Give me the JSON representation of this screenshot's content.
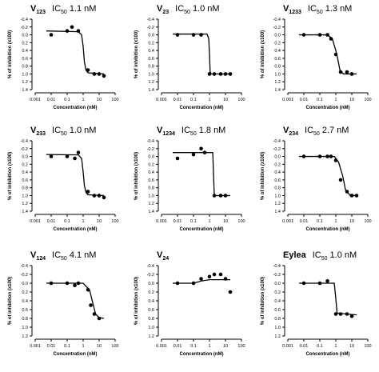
{
  "chart_data": [
    {
      "type": "scatter",
      "label": "V",
      "label_sub": "123",
      "ic50": "IC",
      "ic50_sub": "50",
      "ic50_text": "1.1 nM",
      "xlabel": "Concentration (nM)",
      "ylabel": "% of inhibition (x100)",
      "xscale": "log",
      "y_inverted": true,
      "xlim": [
        0.001,
        100
      ],
      "xticks": [
        0.001,
        0.01,
        0.1,
        1,
        10,
        100
      ],
      "ylim": [
        -0.4,
        1.4
      ],
      "yticks": [
        -0.4,
        -0.2,
        {
          "value": 0,
          "label": "0.0"
        },
        0.2,
        0.4,
        0.6,
        0.8,
        {
          "value": 1,
          "label": "1.0"
        },
        1.2,
        1.4
      ],
      "points": {
        "x": [
          0.01,
          0.1,
          0.2,
          0.5,
          2,
          5,
          10,
          20
        ],
        "values": [
          0.0,
          -0.1,
          -0.2,
          -0.1,
          0.9,
          1.0,
          1.0,
          1.05
        ]
      },
      "fit": {
        "x": [
          0.005,
          0.5,
          0.8,
          1,
          1.2,
          1.5,
          2,
          20
        ],
        "values": [
          -0.1,
          -0.08,
          0.0,
          0.3,
          0.7,
          0.9,
          0.97,
          1.0
        ]
      }
    },
    {
      "type": "scatter",
      "label": "V",
      "label_sub": "23",
      "ic50": "IC",
      "ic50_sub": "50",
      "ic50_text": "1.0 nM",
      "xlabel": "Concentration (nM)",
      "ylabel": "% of inhibition (x100)",
      "xscale": "log",
      "y_inverted": true,
      "xlim": [
        0.001,
        100
      ],
      "xticks": [
        0.001,
        0.01,
        0.1,
        1,
        10,
        100
      ],
      "ylim": [
        -0.4,
        1.4
      ],
      "yticks": [
        -0.4,
        -0.2,
        {
          "value": 0,
          "label": "0.0"
        },
        0.2,
        0.4,
        0.6,
        0.8,
        {
          "value": 1,
          "label": "1.0"
        },
        1.2,
        1.4
      ],
      "points": {
        "x": [
          0.01,
          0.1,
          0.3,
          1,
          2,
          5,
          10,
          20
        ],
        "values": [
          0.0,
          0.0,
          0.0,
          1.0,
          1.0,
          1.0,
          1.0,
          1.0
        ]
      },
      "fit": {
        "x": [
          0.005,
          0.7,
          0.9,
          1,
          1.1,
          1.3,
          20
        ],
        "values": [
          -0.02,
          -0.02,
          0.1,
          0.5,
          0.95,
          1.0,
          1.0
        ]
      }
    },
    {
      "type": "scatter",
      "label": "V",
      "label_sub": "1233",
      "ic50": "IC",
      "ic50_sub": "50",
      "ic50_text": "1.3 nM",
      "xlabel": "Concentration (nM)",
      "ylabel": "% of inhibition (x100)",
      "xscale": "log",
      "y_inverted": true,
      "xlim": [
        0.001,
        100
      ],
      "xticks": [
        0.001,
        0.01,
        0.1,
        1,
        10,
        100
      ],
      "ylim": [
        -0.4,
        1.4
      ],
      "yticks": [
        -0.4,
        -0.2,
        {
          "value": 0,
          "label": "0.0"
        },
        0.2,
        0.4,
        0.6,
        0.8,
        {
          "value": 1,
          "label": "1.0"
        },
        1.2,
        1.4
      ],
      "points": {
        "x": [
          0.01,
          0.1,
          0.3,
          0.5,
          1,
          2,
          5,
          10
        ],
        "values": [
          0.0,
          0.0,
          0.0,
          0.1,
          0.5,
          0.95,
          0.95,
          1.0
        ]
      },
      "fit": {
        "x": [
          0.005,
          0.3,
          0.6,
          1,
          1.3,
          1.8,
          3,
          20
        ],
        "values": [
          0.0,
          0.0,
          0.1,
          0.4,
          0.6,
          0.9,
          1.0,
          1.0
        ]
      }
    },
    {
      "type": "scatter",
      "label": "V",
      "label_sub": "233",
      "ic50": "IC",
      "ic50_sub": "50",
      "ic50_text": "1.0 nM",
      "xlabel": "Concentration (nM)",
      "ylabel": "% of inhibition (x100)",
      "xscale": "log",
      "y_inverted": true,
      "xlim": [
        0.001,
        100
      ],
      "xticks": [
        0.001,
        0.01,
        0.1,
        1,
        10,
        100
      ],
      "ylim": [
        -0.4,
        1.4
      ],
      "yticks": [
        -0.4,
        -0.2,
        {
          "value": 0,
          "label": "0.0"
        },
        0.2,
        0.4,
        0.6,
        0.8,
        {
          "value": 1,
          "label": "1.0"
        },
        1.2,
        1.4
      ],
      "points": {
        "x": [
          0.01,
          0.1,
          0.3,
          0.5,
          2,
          5,
          10,
          20
        ],
        "values": [
          0.0,
          0.0,
          0.05,
          -0.1,
          0.9,
          1.0,
          1.0,
          1.05
        ]
      },
      "fit": {
        "x": [
          0.005,
          0.5,
          0.8,
          1,
          1.2,
          1.5,
          2,
          20
        ],
        "values": [
          -0.05,
          -0.04,
          0.05,
          0.4,
          0.75,
          0.92,
          0.98,
          1.0
        ]
      }
    },
    {
      "type": "scatter",
      "label": "V",
      "label_sub": "1234",
      "ic50": "IC",
      "ic50_sub": "50",
      "ic50_text": "1.8 nM",
      "xlabel": "Concentration (nM)",
      "ylabel": "% of inhibition (x100)",
      "xscale": "log",
      "y_inverted": true,
      "xlim": [
        0.001,
        100
      ],
      "xticks": [
        0.001,
        0.01,
        0.1,
        1,
        10,
        100
      ],
      "ylim": [
        -0.4,
        1.4
      ],
      "yticks": [
        -0.4,
        -0.2,
        {
          "value": 0,
          "label": "0.0"
        },
        0.2,
        0.4,
        0.6,
        0.8,
        {
          "value": 1,
          "label": "1.0"
        },
        1.2,
        1.4
      ],
      "points": {
        "x": [
          0.01,
          0.1,
          0.3,
          0.5,
          2,
          5,
          10
        ],
        "values": [
          0.05,
          -0.05,
          -0.2,
          -0.1,
          1.0,
          1.0,
          1.0
        ]
      },
      "fit": {
        "x": [
          0.005,
          1.6,
          1.8,
          2,
          20
        ],
        "values": [
          -0.1,
          -0.1,
          0.5,
          1.0,
          1.0
        ]
      }
    },
    {
      "type": "scatter",
      "label": "V",
      "label_sub": "234",
      "ic50": "IC",
      "ic50_sub": "50",
      "ic50_text": "2.7 nM",
      "xlabel": "Concentration (nM)",
      "ylabel": "% of inhibition (x100)",
      "xscale": "log",
      "y_inverted": true,
      "xlim": [
        0.001,
        100
      ],
      "xticks": [
        0.001,
        0.01,
        0.1,
        1,
        10,
        100
      ],
      "ylim": [
        -0.4,
        1.4
      ],
      "yticks": [
        -0.4,
        -0.2,
        {
          "value": 0,
          "label": "0.0"
        },
        0.2,
        0.4,
        0.6,
        0.8,
        {
          "value": 1,
          "label": "1.0"
        },
        1.2,
        1.4
      ],
      "points": {
        "x": [
          0.01,
          0.1,
          0.3,
          0.5,
          1,
          2,
          5,
          10,
          20
        ],
        "values": [
          0.0,
          0.0,
          0.0,
          0.0,
          0.1,
          0.6,
          0.9,
          1.0,
          1.0
        ]
      },
      "fit": {
        "x": [
          0.005,
          0.8,
          1.5,
          2.7,
          4,
          8,
          20
        ],
        "values": [
          0.0,
          0.0,
          0.15,
          0.5,
          0.85,
          1.0,
          1.0
        ]
      }
    },
    {
      "type": "scatter",
      "label": "V",
      "label_sub": "124",
      "ic50": "IC",
      "ic50_sub": "50",
      "ic50_text": "4.1 nM",
      "xlabel": "Concentration (nM)",
      "ylabel": "% of inhibition (x100)",
      "xscale": "log",
      "y_inverted": true,
      "xlim": [
        0.001,
        100
      ],
      "xticks": [
        0.001,
        0.01,
        0.1,
        1,
        10,
        100
      ],
      "ylim": [
        -0.4,
        1.2
      ],
      "yticks": [
        -0.4,
        -0.2,
        {
          "value": 0,
          "label": "0.0"
        },
        0.2,
        0.4,
        0.6,
        0.8,
        {
          "value": 1,
          "label": "1.0"
        },
        1.2
      ],
      "points": {
        "x": [
          0.01,
          0.1,
          0.3,
          0.5,
          2,
          3,
          5,
          10
        ],
        "values": [
          0.0,
          0.0,
          0.05,
          0.0,
          0.15,
          0.5,
          0.7,
          0.8
        ]
      },
      "fit": {
        "x": [
          0.005,
          1,
          2.5,
          4,
          6,
          10,
          20
        ],
        "values": [
          0.0,
          0.0,
          0.15,
          0.45,
          0.7,
          0.78,
          0.8
        ]
      }
    },
    {
      "type": "scatter",
      "label": "V",
      "label_sub": "24",
      "xlabel": "Concentration (nM)",
      "ylabel": "% of inhibition (x100)",
      "xscale": "log",
      "y_inverted": true,
      "xlim": [
        0.001,
        100
      ],
      "xticks": [
        0.001,
        0.01,
        0.1,
        1,
        10,
        100
      ],
      "ylim": [
        -0.4,
        1.2
      ],
      "yticks": [
        -0.4,
        -0.2,
        {
          "value": 0,
          "label": "0.0"
        },
        0.2,
        0.4,
        0.6,
        0.8,
        {
          "value": 1,
          "label": "1.0"
        },
        1.2
      ],
      "points": {
        "x": [
          0.01,
          0.1,
          0.3,
          1,
          2,
          5,
          10,
          20
        ],
        "values": [
          0.0,
          0.0,
          -0.1,
          -0.15,
          -0.2,
          -0.2,
          -0.1,
          0.2
        ]
      },
      "fit": {
        "x": [
          0.005,
          0.1,
          0.3,
          1,
          20
        ],
        "values": [
          0.0,
          0.0,
          -0.05,
          -0.08,
          -0.08
        ]
      }
    },
    {
      "type": "scatter",
      "label": "Eylea",
      "ic50": "IC",
      "ic50_sub": "50",
      "ic50_text": "1.0 nM",
      "xlabel": "Concentration (nM)",
      "ylabel": "% of inhibition (x100)",
      "xscale": "log",
      "y_inverted": true,
      "xlim": [
        0.001,
        100
      ],
      "xticks": [
        0.001,
        0.01,
        0.1,
        1,
        10,
        100
      ],
      "ylim": [
        -0.4,
        1.2
      ],
      "yticks": [
        -0.4,
        -0.2,
        {
          "value": 0,
          "label": "0.0"
        },
        0.2,
        0.4,
        0.6,
        0.8,
        {
          "value": 1,
          "label": "1.0"
        },
        1.2
      ],
      "points": {
        "x": [
          0.01,
          0.1,
          0.3,
          1,
          2,
          5,
          10
        ],
        "values": [
          0.0,
          0.0,
          -0.05,
          0.7,
          0.7,
          0.7,
          0.75
        ]
      },
      "fit": {
        "x": [
          0.005,
          0.8,
          1,
          1.2,
          20
        ],
        "values": [
          0.0,
          0.0,
          0.35,
          0.68,
          0.72
        ]
      }
    }
  ]
}
